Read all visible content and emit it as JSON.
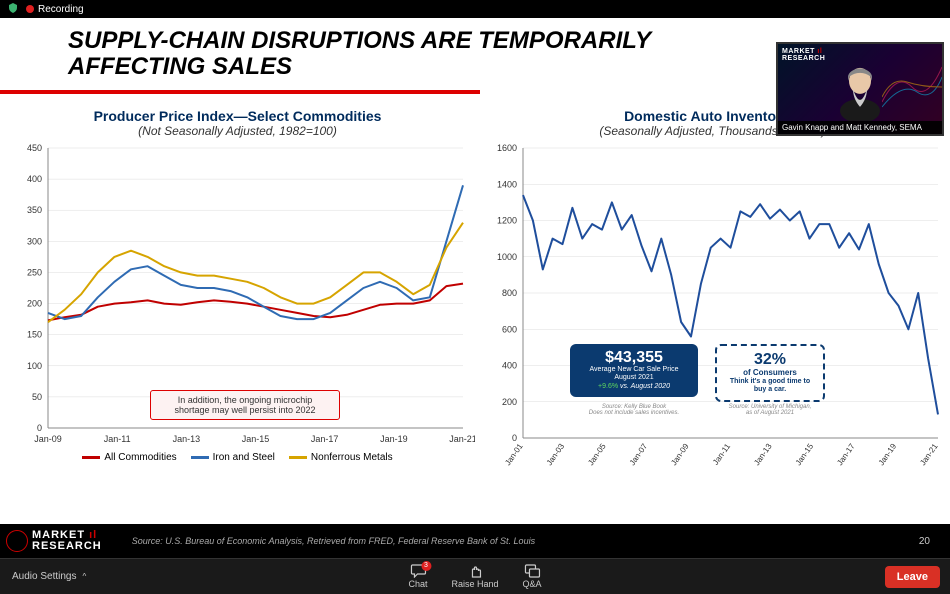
{
  "topbar": {
    "recording_label": "Recording"
  },
  "pip": {
    "brand_top": "MARKET",
    "brand_bottom": "RESEARCH",
    "caption": "Gavin Knapp and Matt Kennedy, SEMA"
  },
  "slide": {
    "title_l1": "SUPPLY-CHAIN DISRUPTIONS ARE TEMPORARILY",
    "title_l2": "AFFECTING SALES",
    "page": "20",
    "source": "Source: U.S. Bureau of Economic Analysis, Retrieved from FRED, Federal Reserve Bank of St. Louis"
  },
  "brand": {
    "top": "MARKET",
    "bottom": "RESEARCH"
  },
  "chart1": {
    "title": "Producer Price Index—Select Commodities",
    "subtitle": "(Not Seasonally Adjusted, 1982=100)",
    "y_ticks": [
      0,
      50,
      100,
      150,
      200,
      250,
      300,
      350,
      400,
      450
    ],
    "x_labels": [
      "Jan-09",
      "Jan-11",
      "Jan-13",
      "Jan-15",
      "Jan-17",
      "Jan-19",
      "Jan-21"
    ],
    "ylim": [
      0,
      450
    ],
    "series": [
      {
        "name": "All Commodities",
        "color": "#c00000",
        "values": [
          173,
          178,
          182,
          195,
          200,
          202,
          205,
          200,
          198,
          202,
          205,
          203,
          200,
          195,
          190,
          185,
          180,
          178,
          182,
          190,
          198,
          200,
          200,
          205,
          228,
          232
        ]
      },
      {
        "name": "Iron and Steel",
        "color": "#2f6bb3",
        "values": [
          185,
          175,
          180,
          210,
          235,
          255,
          260,
          245,
          230,
          225,
          225,
          220,
          210,
          195,
          180,
          175,
          175,
          185,
          205,
          225,
          235,
          225,
          205,
          210,
          300,
          390
        ]
      },
      {
        "name": "Nonferrous Metals",
        "color": "#d6a400",
        "values": [
          170,
          190,
          215,
          250,
          275,
          285,
          275,
          260,
          250,
          245,
          245,
          240,
          235,
          225,
          210,
          200,
          200,
          210,
          230,
          250,
          250,
          235,
          215,
          230,
          290,
          330
        ]
      }
    ],
    "annotation": "In addition, the ongoing microchip shortage may well persist into 2022"
  },
  "chart2": {
    "title": "Domestic Auto Inventories",
    "subtitle": "(Seasonally Adjusted, Thousands of Units)",
    "y_ticks": [
      0,
      200,
      400,
      600,
      800,
      1000,
      1200,
      1400,
      1600
    ],
    "x_labels": [
      "Jan-01",
      "Jan-03",
      "Jan-05",
      "Jan-07",
      "Jan-09",
      "Jan-11",
      "Jan-13",
      "Jan-15",
      "Jan-17",
      "Jan-19",
      "Jan-21"
    ],
    "ylim": [
      0,
      1600
    ],
    "series": {
      "name": "Inventories",
      "color": "#1f4e9c",
      "values": [
        1340,
        1200,
        930,
        1100,
        1070,
        1270,
        1100,
        1180,
        1150,
        1300,
        1150,
        1230,
        1060,
        920,
        1100,
        900,
        640,
        560,
        850,
        1050,
        1100,
        1050,
        1250,
        1220,
        1290,
        1210,
        1260,
        1200,
        1250,
        1100,
        1180,
        1180,
        1050,
        1130,
        1040,
        1180,
        960,
        800,
        730,
        600,
        800,
        440,
        130
      ]
    },
    "box_blue": {
      "big": "$43,355",
      "l1": "Average New Car Sale Price",
      "l2": "August 2021",
      "l3_prefix": "+9.6%",
      "l3_suffix": " vs. August 2020",
      "source": "Source: Kelly Blue Book",
      "source2": "Does not include sales incentives."
    },
    "box_dashed": {
      "big": "32%",
      "l1": "of Consumers",
      "l2": "Think it's a good time to",
      "l3": "buy a car.",
      "source": "Source: University of Michigan,",
      "source2": "as of August 2021"
    }
  },
  "toolbar": {
    "audio": "Audio Settings",
    "chat": "Chat",
    "chat_badge": "3",
    "raise": "Raise Hand",
    "qa": "Q&A",
    "leave": "Leave"
  }
}
